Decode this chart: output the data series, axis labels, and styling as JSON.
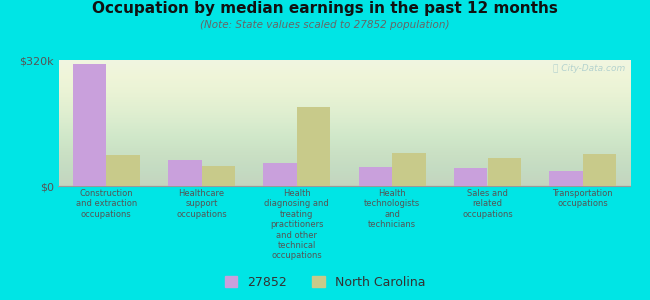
{
  "title": "Occupation by median earnings in the past 12 months",
  "subtitle": "(Note: State values scaled to 27852 population)",
  "background_color": "#00e5e5",
  "plot_bg_color": "#eef4e0",
  "categories": [
    "Construction\nand extraction\noccupations",
    "Healthcare\nsupport\noccupations",
    "Health\ndiagnosing and\ntreating\npractitioners\nand other\ntechnical\noccupations",
    "Health\ntechnologists\nand\ntechnicians",
    "Sales and\nrelated\noccupations",
    "Transportation\noccupations"
  ],
  "values_27852": [
    310000,
    65000,
    58000,
    48000,
    45000,
    38000
  ],
  "values_nc": [
    78000,
    52000,
    200000,
    85000,
    70000,
    82000
  ],
  "color_27852": "#c9a0dc",
  "color_nc": "#c8ca8a",
  "ylim": [
    0,
    320000
  ],
  "yticks": [
    0,
    320000
  ],
  "ytick_labels": [
    "$0",
    "$320k"
  ],
  "legend_labels": [
    "27852",
    "North Carolina"
  ],
  "bar_width": 0.35,
  "watermark": "ⓘ City-Data.com"
}
